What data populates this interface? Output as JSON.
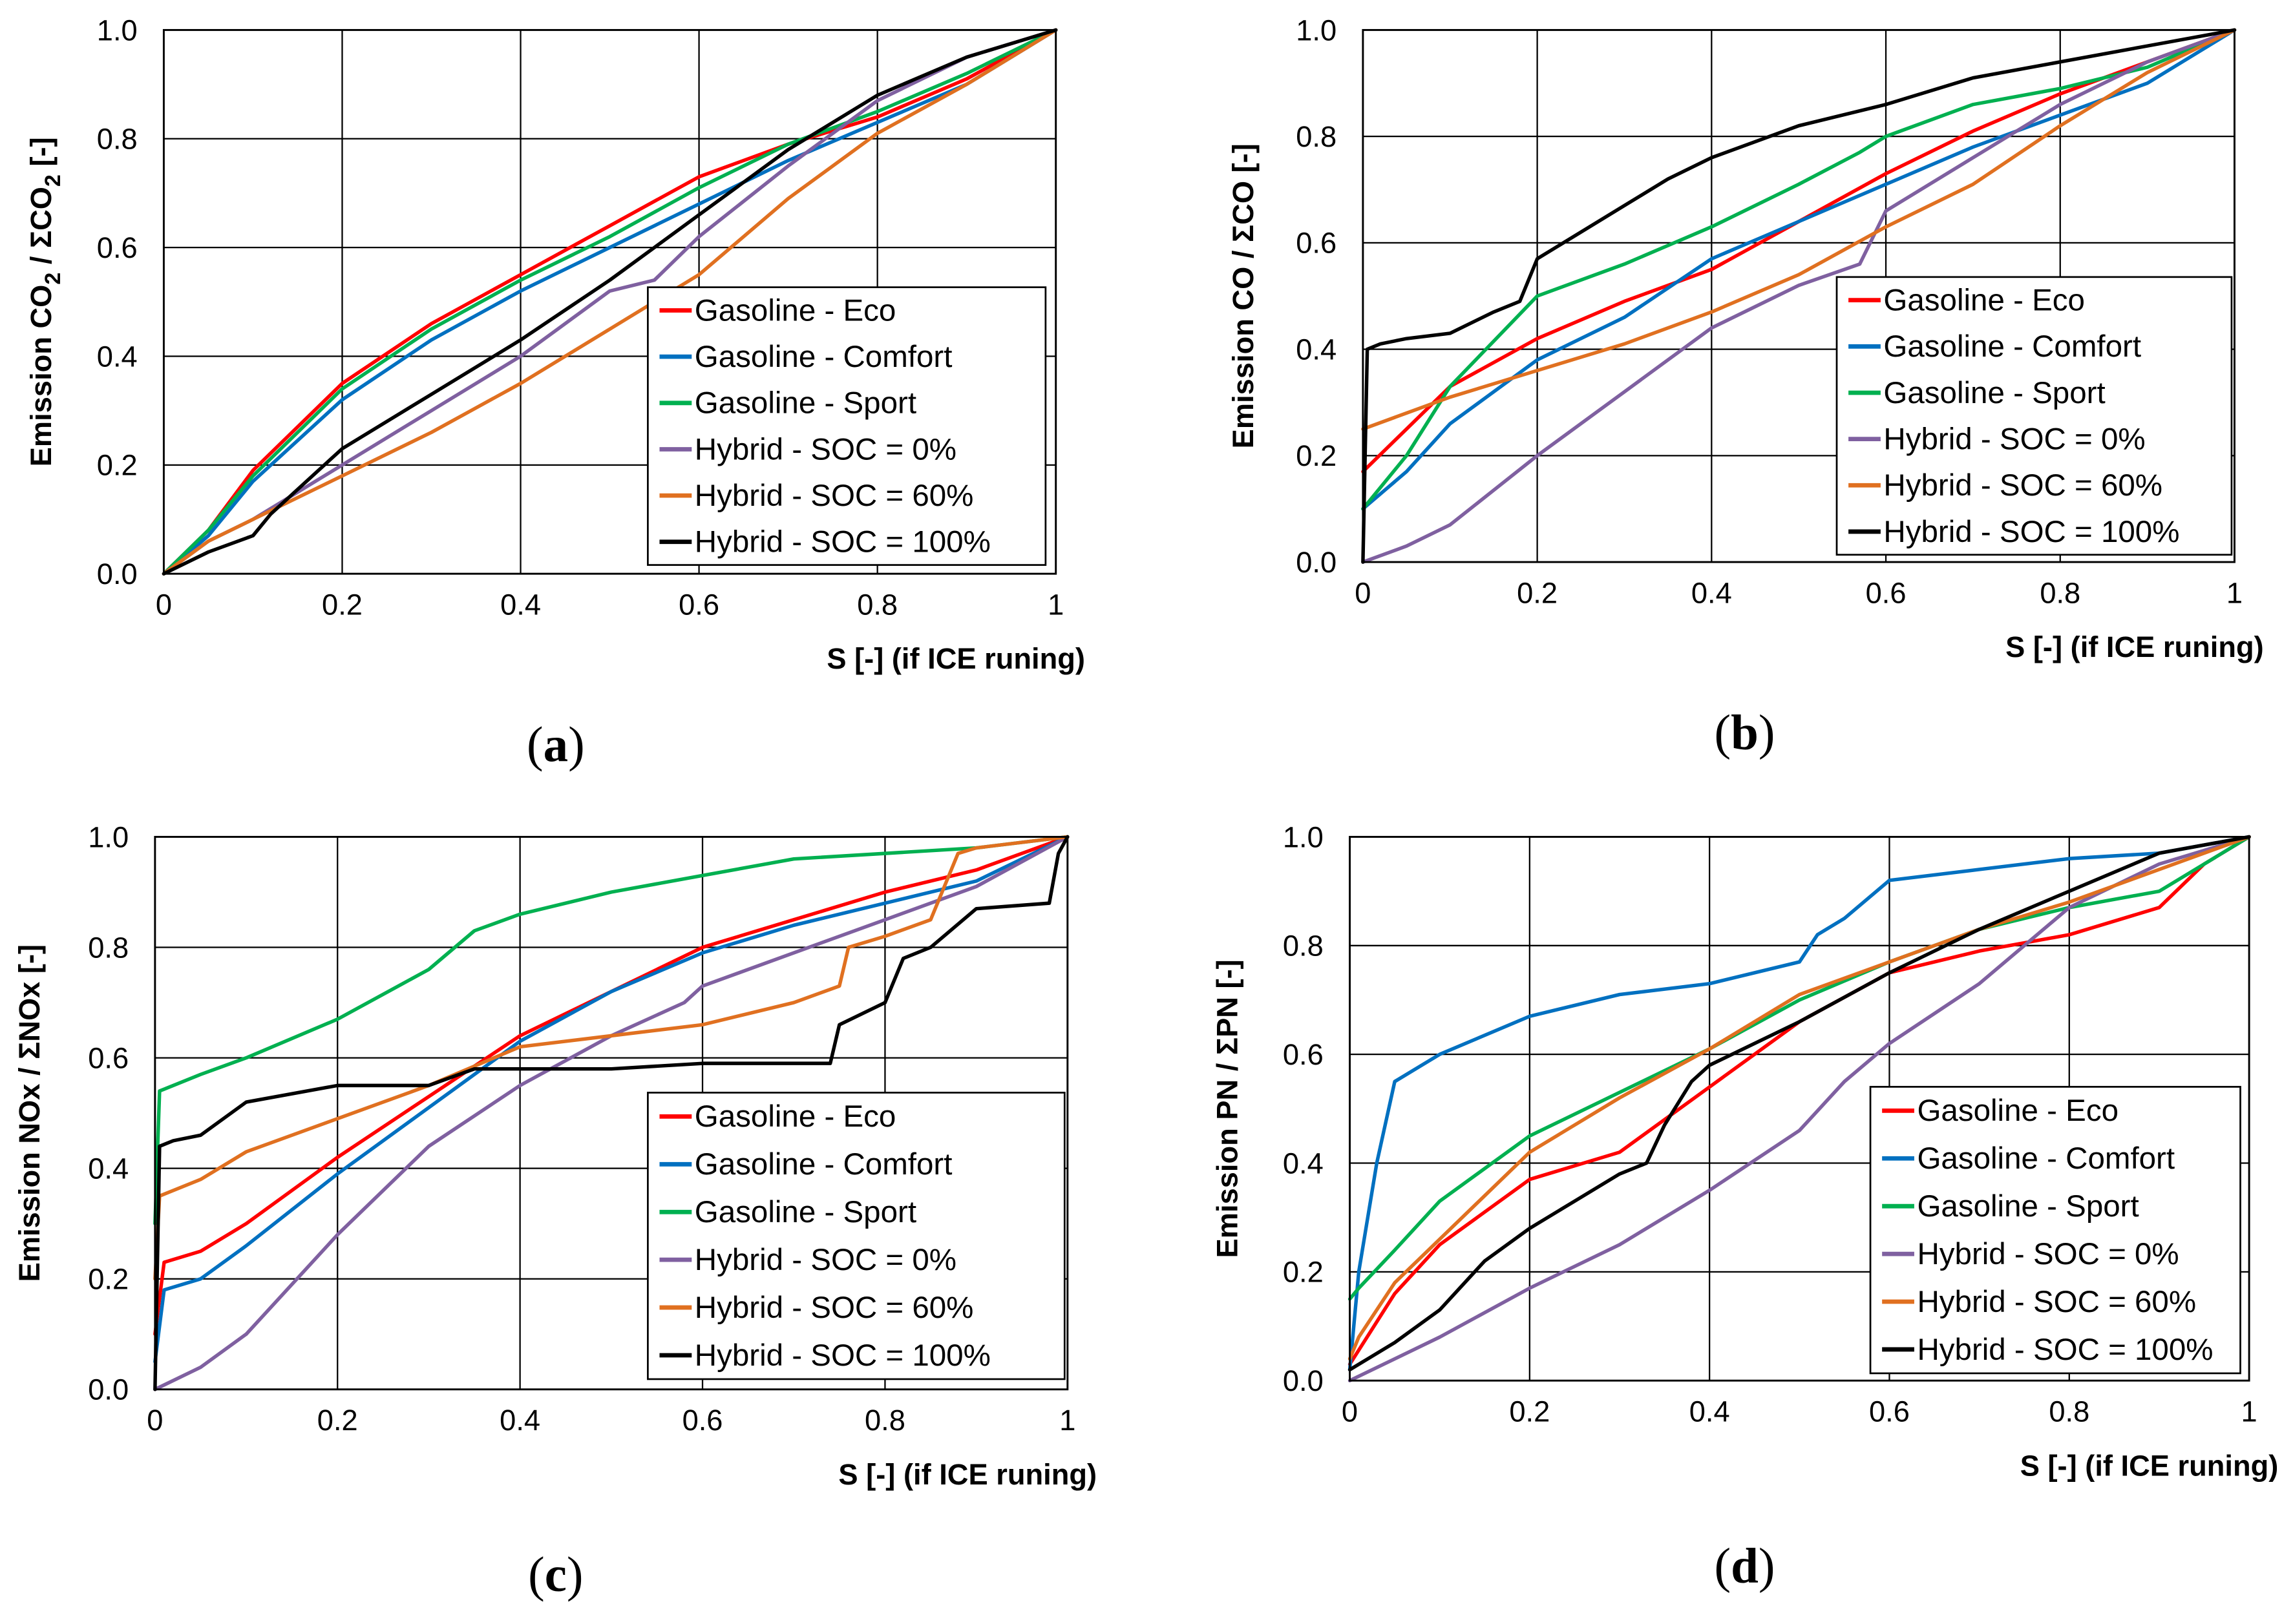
{
  "colors": {
    "Gasoline - Eco": "#ff0000",
    "Gasoline - Comfort": "#0070c0",
    "Gasoline - Sport": "#00b050",
    "Hybrid - SOC = 0%": "#7f60a0",
    "Hybrid - SOC = 60%": "#e07020",
    "Hybrid - SOC = 100%": "#000000"
  },
  "chart_data": [
    {
      "type": "line",
      "panel": "a",
      "caption": "a",
      "title": "",
      "xlabel": "S [-] (if ICE runing)",
      "ylabel": "Emission CO2 / ΣCO2 [-]",
      "ylabel_parts": {
        "prefix": "Emission CO",
        "sub1": "2",
        "mid": " / ΣCO",
        "sub2": "2",
        "suffix": " [-]"
      },
      "xlim": [
        0,
        1
      ],
      "ylim": [
        0,
        1
      ],
      "xticks": [
        "0",
        "0.2",
        "0.4",
        "0.6",
        "0.8",
        "1"
      ],
      "yticks": [
        "0.0",
        "0.2",
        "0.4",
        "0.6",
        "0.8",
        "1.0"
      ],
      "grid": true,
      "legend": "bottom-right",
      "series": [
        {
          "name": "Gasoline - Eco",
          "x": [
            0,
            0.05,
            0.1,
            0.2,
            0.3,
            0.4,
            0.5,
            0.6,
            0.7,
            0.8,
            0.9,
            1.0
          ],
          "y": [
            0,
            0.08,
            0.19,
            0.35,
            0.46,
            0.55,
            0.64,
            0.73,
            0.79,
            0.84,
            0.91,
            1.0
          ]
        },
        {
          "name": "Gasoline - Comfort",
          "x": [
            0,
            0.05,
            0.1,
            0.2,
            0.3,
            0.4,
            0.5,
            0.6,
            0.7,
            0.8,
            0.9,
            1.0
          ],
          "y": [
            0,
            0.07,
            0.17,
            0.32,
            0.43,
            0.52,
            0.6,
            0.68,
            0.76,
            0.83,
            0.9,
            1.0
          ]
        },
        {
          "name": "Gasoline - Sport",
          "x": [
            0,
            0.05,
            0.1,
            0.2,
            0.3,
            0.4,
            0.5,
            0.6,
            0.7,
            0.8,
            0.9,
            1.0
          ],
          "y": [
            0,
            0.08,
            0.18,
            0.34,
            0.45,
            0.54,
            0.62,
            0.71,
            0.79,
            0.85,
            0.92,
            1.0
          ]
        },
        {
          "name": "Hybrid - SOC = 0%",
          "x": [
            0,
            0.05,
            0.1,
            0.2,
            0.3,
            0.4,
            0.5,
            0.55,
            0.6,
            0.7,
            0.8,
            0.9,
            1.0
          ],
          "y": [
            0,
            0.06,
            0.1,
            0.2,
            0.3,
            0.4,
            0.52,
            0.54,
            0.62,
            0.75,
            0.87,
            0.95,
            1.0
          ]
        },
        {
          "name": "Hybrid - SOC = 60%",
          "x": [
            0,
            0.05,
            0.1,
            0.2,
            0.3,
            0.4,
            0.5,
            0.6,
            0.7,
            0.8,
            0.9,
            1.0
          ],
          "y": [
            0,
            0.06,
            0.1,
            0.18,
            0.26,
            0.35,
            0.45,
            0.55,
            0.69,
            0.81,
            0.9,
            1.0
          ]
        },
        {
          "name": "Hybrid - SOC = 100%",
          "x": [
            0,
            0.05,
            0.1,
            0.12,
            0.2,
            0.3,
            0.4,
            0.5,
            0.6,
            0.7,
            0.8,
            0.9,
            1.0
          ],
          "y": [
            0,
            0.04,
            0.07,
            0.11,
            0.23,
            0.33,
            0.43,
            0.54,
            0.66,
            0.78,
            0.88,
            0.95,
            1.0
          ]
        }
      ]
    },
    {
      "type": "line",
      "panel": "b",
      "caption": "b",
      "title": "",
      "xlabel": "S [-] (if ICE runing)",
      "ylabel": "Emission CO / ΣCO [-]",
      "xlim": [
        0,
        1
      ],
      "ylim": [
        0,
        1
      ],
      "xticks": [
        "0",
        "0.2",
        "0.4",
        "0.6",
        "0.8",
        "1"
      ],
      "yticks": [
        "0.0",
        "0.2",
        "0.4",
        "0.6",
        "0.8",
        "1.0"
      ],
      "grid": true,
      "legend": "bottom-right",
      "series": [
        {
          "name": "Gasoline - Eco",
          "x": [
            0,
            0.05,
            0.1,
            0.2,
            0.3,
            0.4,
            0.5,
            0.6,
            0.7,
            0.8,
            0.9,
            1.0
          ],
          "y": [
            0.17,
            0.25,
            0.33,
            0.42,
            0.49,
            0.55,
            0.64,
            0.73,
            0.81,
            0.88,
            0.94,
            1.0
          ]
        },
        {
          "name": "Gasoline - Comfort",
          "x": [
            0,
            0.05,
            0.1,
            0.2,
            0.3,
            0.4,
            0.5,
            0.6,
            0.7,
            0.8,
            0.9,
            1.0
          ],
          "y": [
            0.1,
            0.17,
            0.26,
            0.38,
            0.46,
            0.57,
            0.64,
            0.71,
            0.78,
            0.84,
            0.9,
            1.0
          ]
        },
        {
          "name": "Gasoline - Sport",
          "x": [
            0,
            0.05,
            0.1,
            0.2,
            0.3,
            0.4,
            0.5,
            0.57,
            0.6,
            0.7,
            0.8,
            0.9,
            1.0
          ],
          "y": [
            0.1,
            0.2,
            0.33,
            0.5,
            0.56,
            0.63,
            0.71,
            0.77,
            0.8,
            0.86,
            0.89,
            0.93,
            1.0
          ]
        },
        {
          "name": "Hybrid - SOC = 0%",
          "x": [
            0,
            0.05,
            0.1,
            0.2,
            0.3,
            0.4,
            0.5,
            0.57,
            0.6,
            0.7,
            0.8,
            0.9,
            1.0
          ],
          "y": [
            0,
            0.03,
            0.07,
            0.2,
            0.32,
            0.44,
            0.52,
            0.56,
            0.66,
            0.76,
            0.86,
            0.94,
            1.0
          ]
        },
        {
          "name": "Hybrid - SOC = 60%",
          "x": [
            0,
            0.05,
            0.1,
            0.2,
            0.3,
            0.4,
            0.5,
            0.6,
            0.7,
            0.8,
            0.9,
            1.0
          ],
          "y": [
            0.25,
            0.28,
            0.31,
            0.36,
            0.41,
            0.47,
            0.54,
            0.63,
            0.71,
            0.82,
            0.92,
            1.0
          ]
        },
        {
          "name": "Hybrid - SOC = 100%",
          "x": [
            0,
            0.005,
            0.02,
            0.05,
            0.1,
            0.15,
            0.18,
            0.2,
            0.3,
            0.35,
            0.4,
            0.5,
            0.6,
            0.7,
            0.8,
            0.9,
            1.0
          ],
          "y": [
            0,
            0.4,
            0.41,
            0.42,
            0.43,
            0.47,
            0.49,
            0.57,
            0.67,
            0.72,
            0.76,
            0.82,
            0.86,
            0.91,
            0.94,
            0.97,
            1.0
          ]
        }
      ]
    },
    {
      "type": "line",
      "panel": "c",
      "caption": "c",
      "title": "",
      "xlabel": "S [-] (if ICE runing)",
      "ylabel": "Emission NOx / ΣNOx [-]",
      "xlim": [
        0,
        1
      ],
      "ylim": [
        0,
        1
      ],
      "xticks": [
        "0",
        "0.2",
        "0.4",
        "0.6",
        "0.8",
        "1"
      ],
      "yticks": [
        "0.0",
        "0.2",
        "0.4",
        "0.6",
        "0.8",
        "1.0"
      ],
      "grid": true,
      "legend": "bottom-right",
      "series": [
        {
          "name": "Gasoline - Eco",
          "x": [
            0,
            0.01,
            0.05,
            0.1,
            0.2,
            0.3,
            0.4,
            0.5,
            0.6,
            0.7,
            0.8,
            0.9,
            1.0
          ],
          "y": [
            0.1,
            0.23,
            0.25,
            0.3,
            0.42,
            0.53,
            0.64,
            0.72,
            0.8,
            0.85,
            0.9,
            0.94,
            1.0
          ]
        },
        {
          "name": "Gasoline - Comfort",
          "x": [
            0,
            0.01,
            0.05,
            0.1,
            0.2,
            0.3,
            0.4,
            0.5,
            0.6,
            0.7,
            0.8,
            0.9,
            1.0
          ],
          "y": [
            0.05,
            0.18,
            0.2,
            0.26,
            0.39,
            0.51,
            0.63,
            0.72,
            0.79,
            0.84,
            0.88,
            0.92,
            1.0
          ]
        },
        {
          "name": "Gasoline - Sport",
          "x": [
            0,
            0.005,
            0.05,
            0.1,
            0.2,
            0.3,
            0.35,
            0.4,
            0.5,
            0.6,
            0.7,
            0.8,
            0.9,
            1.0
          ],
          "y": [
            0.3,
            0.54,
            0.57,
            0.6,
            0.67,
            0.76,
            0.83,
            0.86,
            0.9,
            0.93,
            0.96,
            0.97,
            0.98,
            1.0
          ]
        },
        {
          "name": "Hybrid - SOC = 0%",
          "x": [
            0,
            0.05,
            0.1,
            0.2,
            0.3,
            0.4,
            0.5,
            0.58,
            0.6,
            0.7,
            0.8,
            0.9,
            1.0
          ],
          "y": [
            0,
            0.04,
            0.1,
            0.28,
            0.44,
            0.55,
            0.64,
            0.7,
            0.73,
            0.79,
            0.85,
            0.91,
            1.0
          ]
        },
        {
          "name": "Hybrid - SOC = 60%",
          "x": [
            0,
            0.005,
            0.02,
            0.05,
            0.1,
            0.2,
            0.3,
            0.4,
            0.5,
            0.6,
            0.7,
            0.75,
            0.76,
            0.8,
            0.85,
            0.88,
            0.9,
            1.0
          ],
          "y": [
            0.2,
            0.35,
            0.36,
            0.38,
            0.43,
            0.49,
            0.55,
            0.62,
            0.64,
            0.66,
            0.7,
            0.73,
            0.8,
            0.82,
            0.85,
            0.97,
            0.98,
            1.0
          ]
        },
        {
          "name": "Hybrid - SOC = 100%",
          "x": [
            0,
            0.005,
            0.02,
            0.05,
            0.1,
            0.2,
            0.3,
            0.35,
            0.5,
            0.6,
            0.74,
            0.75,
            0.8,
            0.82,
            0.85,
            0.9,
            0.98,
            0.99,
            1.0
          ],
          "y": [
            0,
            0.44,
            0.45,
            0.46,
            0.52,
            0.55,
            0.55,
            0.58,
            0.58,
            0.59,
            0.59,
            0.66,
            0.7,
            0.78,
            0.8,
            0.87,
            0.88,
            0.97,
            1.0
          ]
        }
      ]
    },
    {
      "type": "line",
      "panel": "d",
      "caption": "d",
      "title": "",
      "xlabel": "S [-] (if ICE runing)",
      "ylabel": "Emission PN / ΣPN [-]",
      "xlim": [
        0,
        1
      ],
      "ylim": [
        0,
        1
      ],
      "xticks": [
        "0",
        "0.2",
        "0.4",
        "0.6",
        "0.8",
        "1"
      ],
      "yticks": [
        "0.0",
        "0.2",
        "0.4",
        "0.6",
        "0.8",
        "1.0"
      ],
      "grid": true,
      "legend": "bottom-right",
      "series": [
        {
          "name": "Gasoline - Eco",
          "x": [
            0,
            0.05,
            0.1,
            0.2,
            0.3,
            0.35,
            0.4,
            0.5,
            0.6,
            0.7,
            0.8,
            0.9,
            0.95,
            1.0
          ],
          "y": [
            0.03,
            0.16,
            0.25,
            0.37,
            0.42,
            0.48,
            0.54,
            0.66,
            0.75,
            0.79,
            0.82,
            0.87,
            0.95,
            1.0
          ]
        },
        {
          "name": "Gasoline - Comfort",
          "x": [
            0,
            0.01,
            0.02,
            0.03,
            0.05,
            0.1,
            0.2,
            0.3,
            0.4,
            0.5,
            0.52,
            0.55,
            0.6,
            0.7,
            0.8,
            0.9,
            1.0
          ],
          "y": [
            0.02,
            0.2,
            0.3,
            0.4,
            0.55,
            0.6,
            0.67,
            0.71,
            0.73,
            0.77,
            0.82,
            0.85,
            0.92,
            0.94,
            0.96,
            0.97,
            1.0
          ]
        },
        {
          "name": "Gasoline - Sport",
          "x": [
            0,
            0.01,
            0.05,
            0.1,
            0.2,
            0.3,
            0.4,
            0.5,
            0.6,
            0.7,
            0.8,
            0.9,
            1.0
          ],
          "y": [
            0.15,
            0.17,
            0.24,
            0.33,
            0.45,
            0.53,
            0.61,
            0.7,
            0.77,
            0.83,
            0.87,
            0.9,
            1.0
          ]
        },
        {
          "name": "Hybrid - SOC = 0%",
          "x": [
            0,
            0.05,
            0.1,
            0.2,
            0.3,
            0.4,
            0.5,
            0.55,
            0.6,
            0.7,
            0.8,
            0.9,
            1.0
          ],
          "y": [
            0,
            0.04,
            0.08,
            0.17,
            0.25,
            0.35,
            0.46,
            0.55,
            0.62,
            0.73,
            0.87,
            0.95,
            1.0
          ]
        },
        {
          "name": "Hybrid - SOC = 60%",
          "x": [
            0,
            0.01,
            0.05,
            0.1,
            0.2,
            0.3,
            0.4,
            0.5,
            0.6,
            0.7,
            0.8,
            0.9,
            1.0
          ],
          "y": [
            0.04,
            0.08,
            0.18,
            0.26,
            0.42,
            0.52,
            0.61,
            0.71,
            0.77,
            0.83,
            0.88,
            0.94,
            1.0
          ]
        },
        {
          "name": "Hybrid - SOC = 100%",
          "x": [
            0,
            0.02,
            0.05,
            0.1,
            0.15,
            0.2,
            0.25,
            0.3,
            0.33,
            0.35,
            0.38,
            0.4,
            0.5,
            0.6,
            0.7,
            0.8,
            0.9,
            1.0
          ],
          "y": [
            0.02,
            0.04,
            0.07,
            0.13,
            0.22,
            0.28,
            0.33,
            0.38,
            0.4,
            0.47,
            0.55,
            0.58,
            0.66,
            0.75,
            0.83,
            0.9,
            0.97,
            1.0
          ]
        }
      ]
    }
  ]
}
